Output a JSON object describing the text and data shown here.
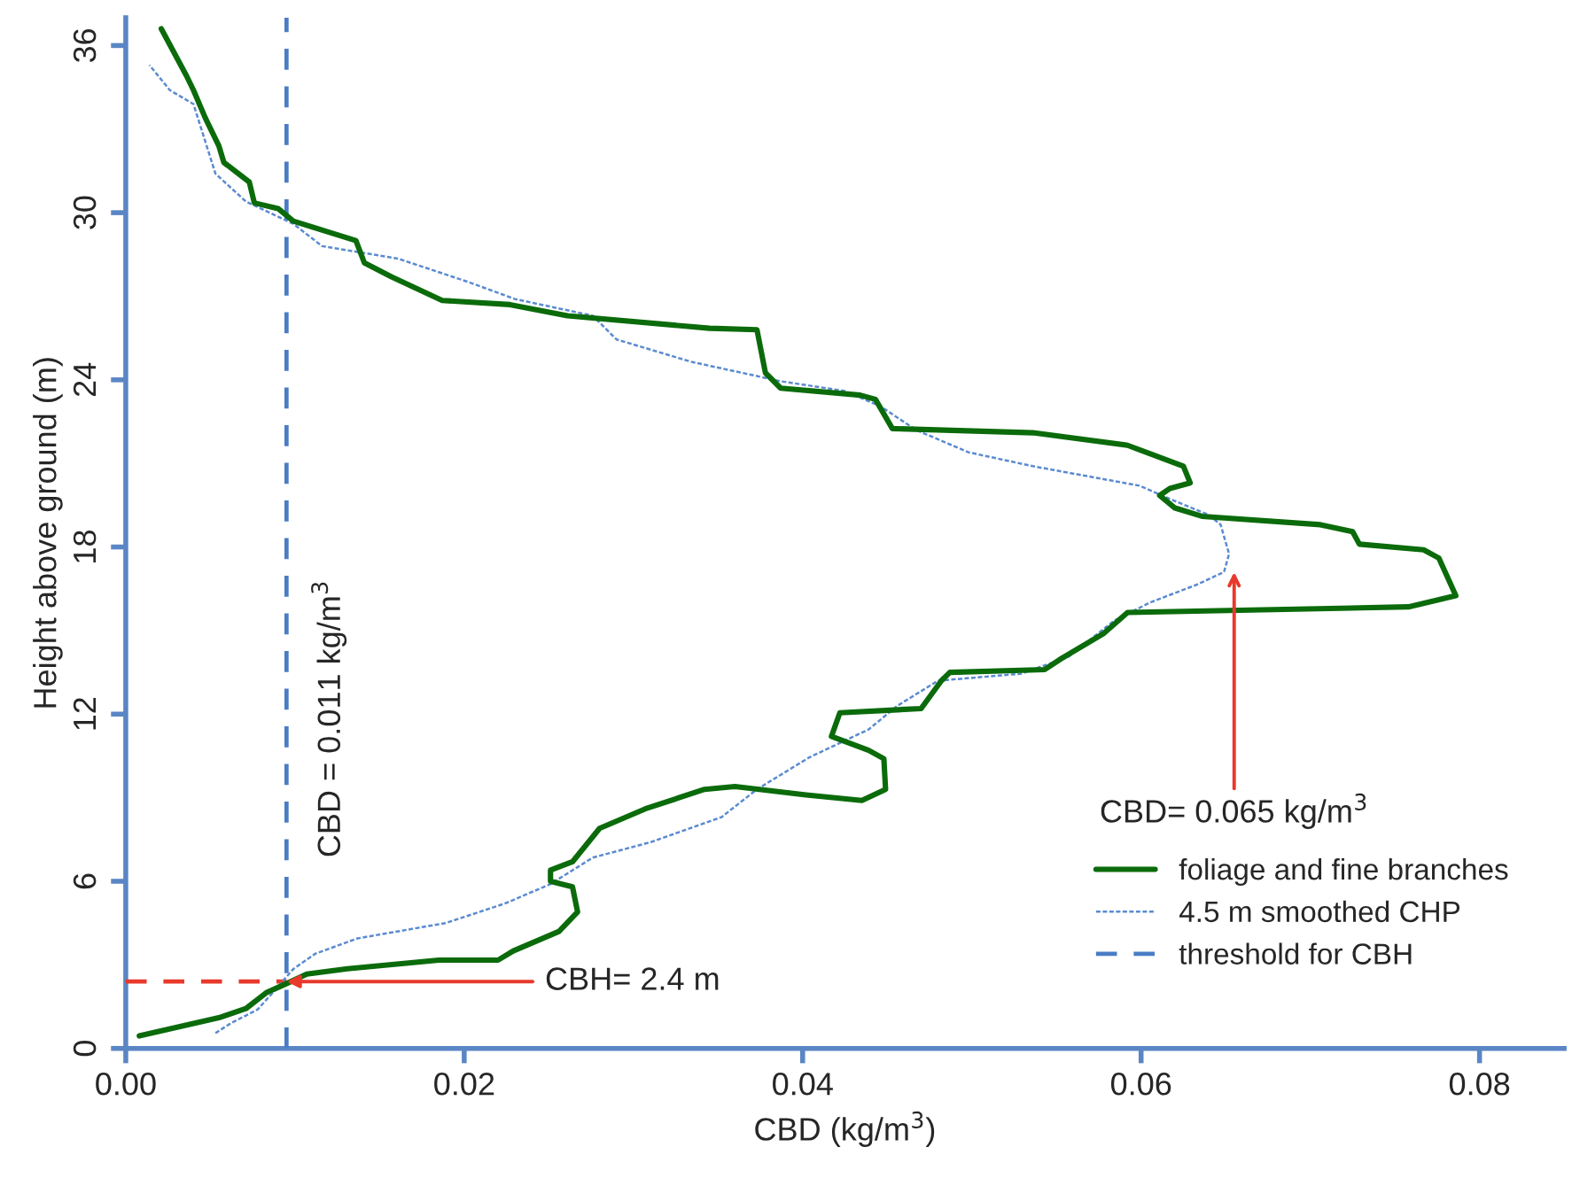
{
  "chart_data": {
    "type": "line",
    "xlabel": "CBD (kg/m$^{3}$)",
    "ylabel": "Height above ground (m)",
    "xlim": [
      0,
      0.085
    ],
    "ylim": [
      0,
      37
    ],
    "xticks": [
      {
        "value": 0,
        "label": "0.00"
      },
      {
        "value": 0.02,
        "label": "0.02"
      },
      {
        "value": 0.04,
        "label": "0.04"
      },
      {
        "value": 0.06,
        "label": "0.06"
      },
      {
        "value": 0.08,
        "label": "0.08"
      }
    ],
    "yticks": [
      0,
      6,
      12,
      18,
      24,
      30,
      36
    ],
    "grid": false,
    "legend": "bottom right",
    "series": [
      {
        "name": "foliage and fine branches",
        "color": "#0b6b0b",
        "line_style": "solid",
        "x": [
          0.0008,
          0.0055,
          0.0071,
          0.0083,
          0.0094,
          0.0107,
          0.0131,
          0.0185,
          0.022,
          0.0229,
          0.0256,
          0.0267,
          0.0264,
          0.0251,
          0.0251,
          0.0264,
          0.028,
          0.0307,
          0.0342,
          0.036,
          0.0402,
          0.0435,
          0.0449,
          0.0448,
          0.0439,
          0.0417,
          0.0422,
          0.047,
          0.0482,
          0.0487,
          0.0543,
          0.0553,
          0.0578,
          0.0592,
          0.0758,
          0.0786,
          0.0776,
          0.0767,
          0.0729,
          0.0725,
          0.0706,
          0.0636,
          0.062,
          0.0611,
          0.0617,
          0.0629,
          0.0625,
          0.0592,
          0.0536,
          0.0453,
          0.0443,
          0.0434,
          0.0387,
          0.0378,
          0.0373,
          0.0345,
          0.0261,
          0.0227,
          0.0187,
          0.0157,
          0.0141,
          0.0136,
          0.012,
          0.0099,
          0.009,
          0.0076,
          0.0073,
          0.0058,
          0.0055,
          0.0047,
          0.004,
          0.0036,
          0.0021
        ],
        "values": [
          0.45,
          1.1,
          1.43,
          2.0,
          2.3,
          2.67,
          2.86,
          3.17,
          3.17,
          3.5,
          4.2,
          4.9,
          5.8,
          6.0,
          6.4,
          6.7,
          7.9,
          8.6,
          9.3,
          9.4,
          9.1,
          8.9,
          9.3,
          10.4,
          10.7,
          11.2,
          12.05,
          12.2,
          13.2,
          13.5,
          13.6,
          14.0,
          14.9,
          15.65,
          15.85,
          16.25,
          17.6,
          17.9,
          18.1,
          18.55,
          18.8,
          19.1,
          19.4,
          19.85,
          20.1,
          20.3,
          20.9,
          21.65,
          22.1,
          22.25,
          23.3,
          23.45,
          23.7,
          24.25,
          25.8,
          25.85,
          26.3,
          26.7,
          26.85,
          27.7,
          28.2,
          29.0,
          29.3,
          29.7,
          30.15,
          30.35,
          31.1,
          31.8,
          32.4,
          33.4,
          34.4,
          34.9,
          36.6
        ]
      },
      {
        "name": "4.5 m smoothed CHP",
        "color": "#5b8bd0",
        "line_style": "dotted",
        "x": [
          0.0053,
          0.0062,
          0.0078,
          0.0089,
          0.0099,
          0.0112,
          0.0137,
          0.0189,
          0.0224,
          0.0251,
          0.0276,
          0.031,
          0.0352,
          0.0373,
          0.0404,
          0.0439,
          0.0456,
          0.048,
          0.0529,
          0.0557,
          0.0584,
          0.0605,
          0.0633,
          0.0649,
          0.0652,
          0.0647,
          0.064,
          0.0616,
          0.0599,
          0.0536,
          0.0498,
          0.0467,
          0.0446,
          0.0425,
          0.0387,
          0.0334,
          0.029,
          0.0276,
          0.023,
          0.0203,
          0.0161,
          0.0116,
          0.0099,
          0.0071,
          0.0053,
          0.004,
          0.0026,
          0.0014
        ],
        "values": [
          0.55,
          0.9,
          1.4,
          2.15,
          2.85,
          3.4,
          3.95,
          4.5,
          5.2,
          5.9,
          6.85,
          7.4,
          8.3,
          9.3,
          10.45,
          11.45,
          12.3,
          13.2,
          13.45,
          14.05,
          15.35,
          16.0,
          16.65,
          17.1,
          17.75,
          18.8,
          19.15,
          19.75,
          20.2,
          20.9,
          21.4,
          22.2,
          23.05,
          23.6,
          23.95,
          24.65,
          25.45,
          26.3,
          26.9,
          27.5,
          28.35,
          28.8,
          29.6,
          30.4,
          31.4,
          33.9,
          34.4,
          35.3
        ]
      },
      {
        "name": "threshold for CBH",
        "color": "#4a7cc4",
        "line_style": "dashed",
        "x": [
          0.0095,
          0.0095
        ],
        "values": [
          0,
          37
        ]
      },
      {
        "color": "#e8392b",
        "line_style": "dashed",
        "x": [
          0,
          0.0095
        ],
        "values": [
          2.4,
          2.4
        ]
      }
    ],
    "annotations": [
      "CBD = 0.011 kg/m$^{3}$",
      {
        "text": "CBD= 0.065 kg/m$^{3}$",
        "x": 0.0655,
        "y": 17.1
      },
      {
        "text": "CBH= 2.4 m",
        "x": 0.0095,
        "y": 2.4
      }
    ]
  }
}
